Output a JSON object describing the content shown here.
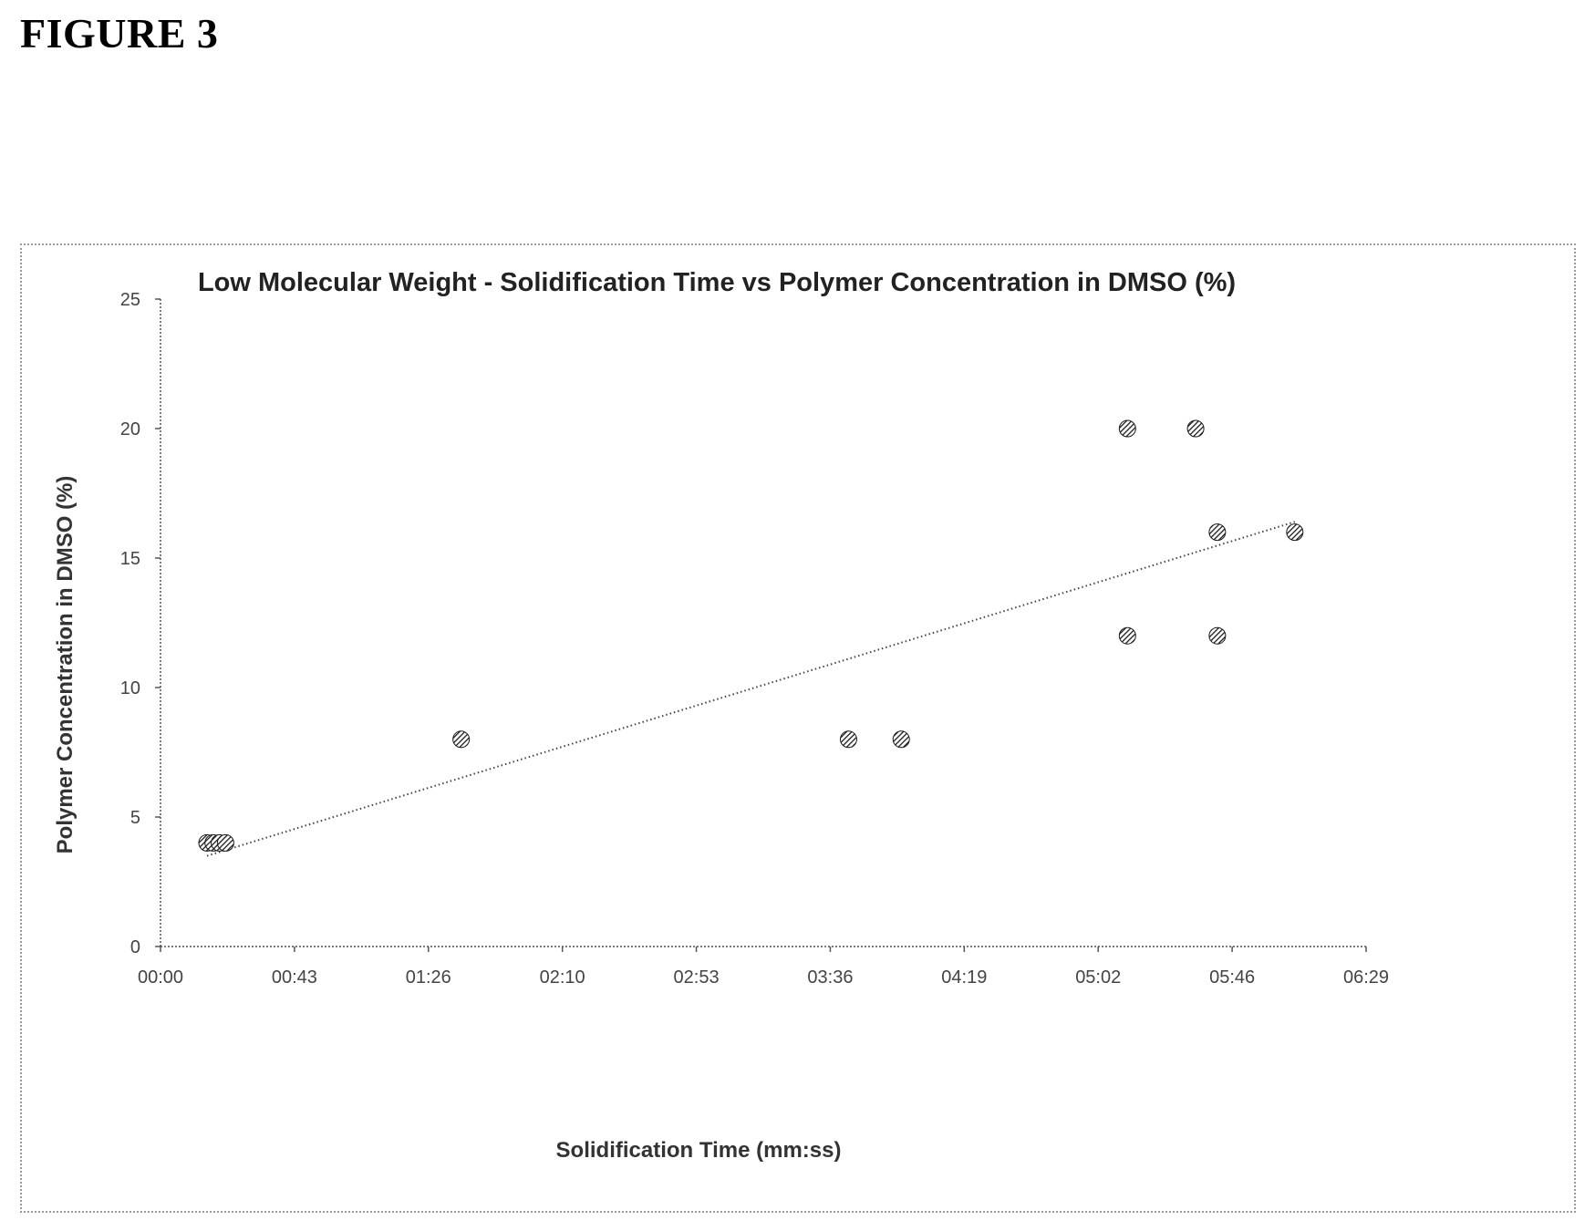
{
  "figure": {
    "label": "FIGURE 3"
  },
  "chart_data": {
    "type": "scatter",
    "title": "Low Molecular Weight - Solidification Time vs Polymer Concentration in DMSO (%)",
    "xlabel": "Solidification Time (mm:ss)",
    "ylabel": "Polymer Concentration in DMSO (%)",
    "x_unit": "mm:ss",
    "xlim": [
      "00:00",
      "06:29"
    ],
    "ylim": [
      0,
      25
    ],
    "x_ticks": [
      "00:00",
      "00:43",
      "01:26",
      "02:10",
      "02:53",
      "03:36",
      "04:19",
      "05:02",
      "05:46",
      "06:29"
    ],
    "y_ticks": [
      "0",
      "5",
      "10",
      "15",
      "20",
      "25"
    ],
    "grid": false,
    "legend": "none",
    "series": [
      {
        "points": [
          {
            "x": "00:15",
            "y": 4
          },
          {
            "x": "00:17",
            "y": 4
          },
          {
            "x": "00:19",
            "y": 4
          },
          {
            "x": "00:21",
            "y": 4
          },
          {
            "x": "01:37",
            "y": 8
          },
          {
            "x": "03:42",
            "y": 8
          },
          {
            "x": "03:59",
            "y": 8
          },
          {
            "x": "05:12",
            "y": 20
          },
          {
            "x": "05:12",
            "y": 12
          },
          {
            "x": "05:34",
            "y": 20
          },
          {
            "x": "05:41",
            "y": 16
          },
          {
            "x": "05:41",
            "y": 12
          },
          {
            "x": "06:06",
            "y": 16
          }
        ]
      }
    ],
    "trendline": {
      "type": "linear",
      "style": "dotted",
      "from": {
        "x": "00:15",
        "y": 3.5
      },
      "to": {
        "x": "06:06",
        "y": 16.4
      }
    },
    "colors": {
      "marker": "#1a1a1a",
      "axis": "#555555",
      "trendline": "#444444",
      "frame": "#9a9a9a"
    }
  }
}
